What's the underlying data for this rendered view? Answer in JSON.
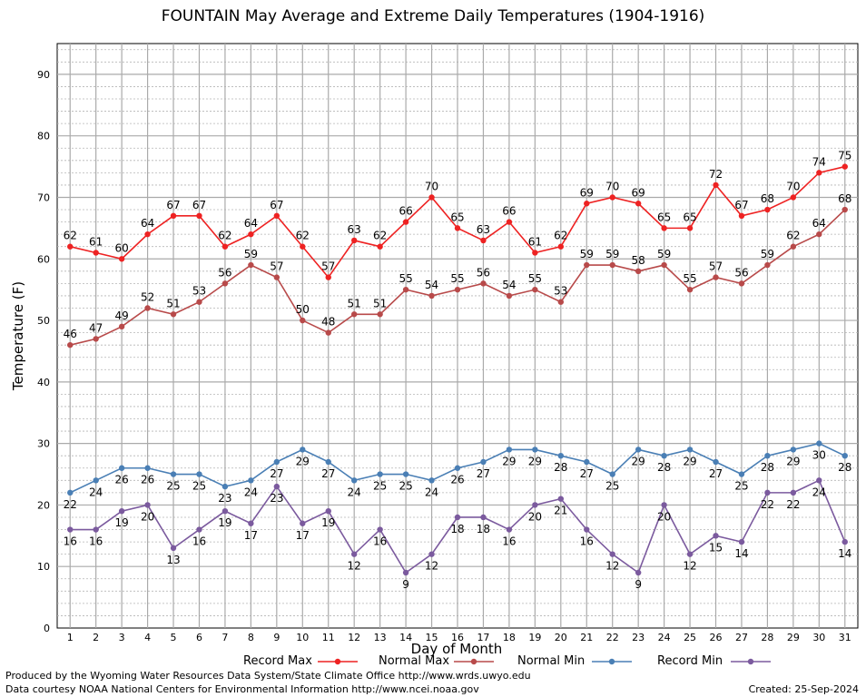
{
  "chart_data": {
    "type": "line",
    "title": "FOUNTAIN May Average and Extreme Daily Temperatures (1904-1916)",
    "xlabel": "Day of Month",
    "ylabel": "Temperature (F)",
    "x": [
      1,
      2,
      3,
      4,
      5,
      6,
      7,
      8,
      9,
      10,
      11,
      12,
      13,
      14,
      15,
      16,
      17,
      18,
      19,
      20,
      21,
      22,
      23,
      24,
      25,
      26,
      27,
      28,
      29,
      30,
      31
    ],
    "ylim": [
      0,
      95
    ],
    "yticks": [
      0,
      10,
      20,
      30,
      40,
      50,
      60,
      70,
      80,
      90
    ],
    "grid": true,
    "legend_position": "bottom",
    "series": [
      {
        "name": "Record Max",
        "color": "#ee2222",
        "values": [
          62,
          61,
          60,
          64,
          67,
          67,
          62,
          64,
          67,
          62,
          57,
          63,
          62,
          66,
          70,
          65,
          63,
          66,
          61,
          62,
          69,
          70,
          69,
          65,
          65,
          72,
          67,
          68,
          70,
          74,
          75
        ]
      },
      {
        "name": "Normal Max",
        "color": "#b84a4a",
        "values": [
          46,
          47,
          49,
          52,
          51,
          53,
          56,
          59,
          57,
          50,
          48,
          51,
          51,
          55,
          54,
          55,
          56,
          54,
          55,
          53,
          59,
          59,
          58,
          59,
          55,
          57,
          56,
          59,
          62,
          64,
          68
        ]
      },
      {
        "name": "Normal Min",
        "color": "#4a7fb5",
        "values": [
          22,
          24,
          26,
          26,
          25,
          25,
          23,
          24,
          27,
          29,
          27,
          24,
          25,
          25,
          24,
          26,
          27,
          29,
          29,
          28,
          27,
          25,
          29,
          28,
          29,
          27,
          25,
          28,
          29,
          30,
          28
        ]
      },
      {
        "name": "Record Min",
        "color": "#7b5a9e",
        "values": [
          16,
          16,
          19,
          20,
          13,
          16,
          19,
          17,
          23,
          17,
          19,
          12,
          16,
          9,
          12,
          18,
          18,
          16,
          20,
          21,
          16,
          12,
          9,
          20,
          12,
          15,
          14,
          22,
          22,
          24,
          14
        ]
      }
    ]
  },
  "footer": {
    "produced_by": "Produced by the Wyoming Water Resources Data System/State Climate Office http://www.wrds.uwyo.edu",
    "courtesy": "Data courtesy NOAA National Centers for Environmental Information http://www.ncei.noaa.gov",
    "created": "Created:  25-Sep-2024"
  }
}
